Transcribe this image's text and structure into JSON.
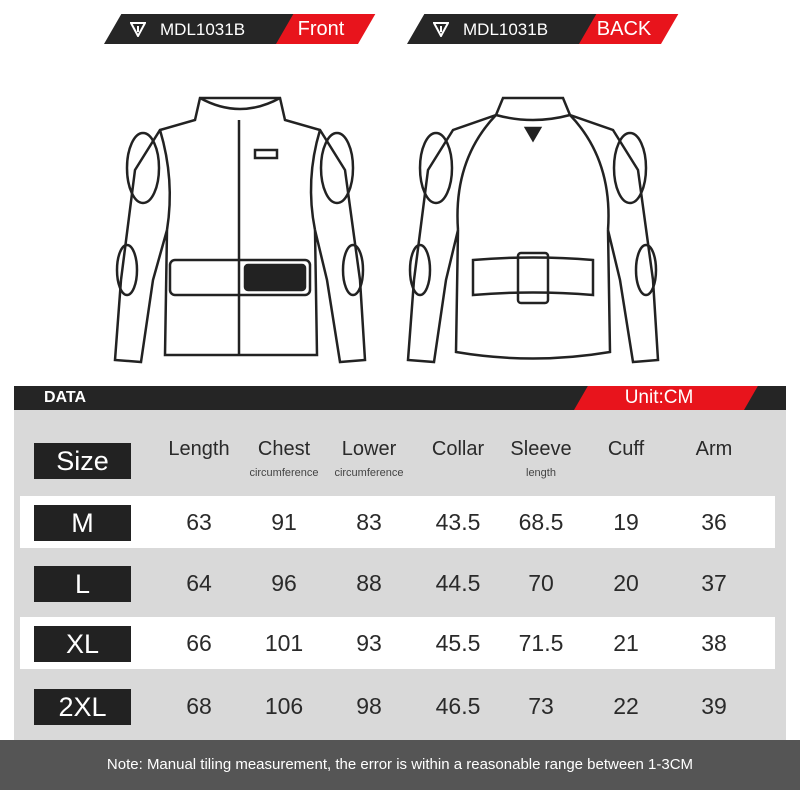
{
  "tags": [
    {
      "model": "MDL1031B",
      "side": "Front"
    },
    {
      "model": "MDL1031B",
      "side": "BACK"
    }
  ],
  "colors": {
    "accent": "#e8141c",
    "dark": "#252525",
    "panel": "#d9d9d9"
  },
  "table": {
    "title": "DATA",
    "unit": "Unit:CM",
    "size_header": "Size",
    "headers": [
      {
        "label": "Length",
        "sub": ""
      },
      {
        "label": "Chest",
        "sub": "circumference"
      },
      {
        "label": "Lower",
        "sub": "circumference"
      },
      {
        "label": "Collar",
        "sub": ""
      },
      {
        "label": "Sleeve",
        "sub": "length"
      },
      {
        "label": "Cuff",
        "sub": ""
      },
      {
        "label": "Arm",
        "sub": ""
      }
    ],
    "rows": [
      {
        "size": "M",
        "values": [
          "63",
          "91",
          "83",
          "43.5",
          "68.5",
          "19",
          "36"
        ]
      },
      {
        "size": "L",
        "values": [
          "64",
          "96",
          "88",
          "44.5",
          "70",
          "20",
          "37"
        ]
      },
      {
        "size": "XL",
        "values": [
          "66",
          "101",
          "93",
          "45.5",
          "71.5",
          "21",
          "38"
        ]
      },
      {
        "size": "2XL",
        "values": [
          "68",
          "106",
          "98",
          "46.5",
          "73",
          "22",
          "39"
        ]
      }
    ]
  },
  "note": "Note: Manual tiling measurement, the error is within a reasonable range between 1-3CM"
}
